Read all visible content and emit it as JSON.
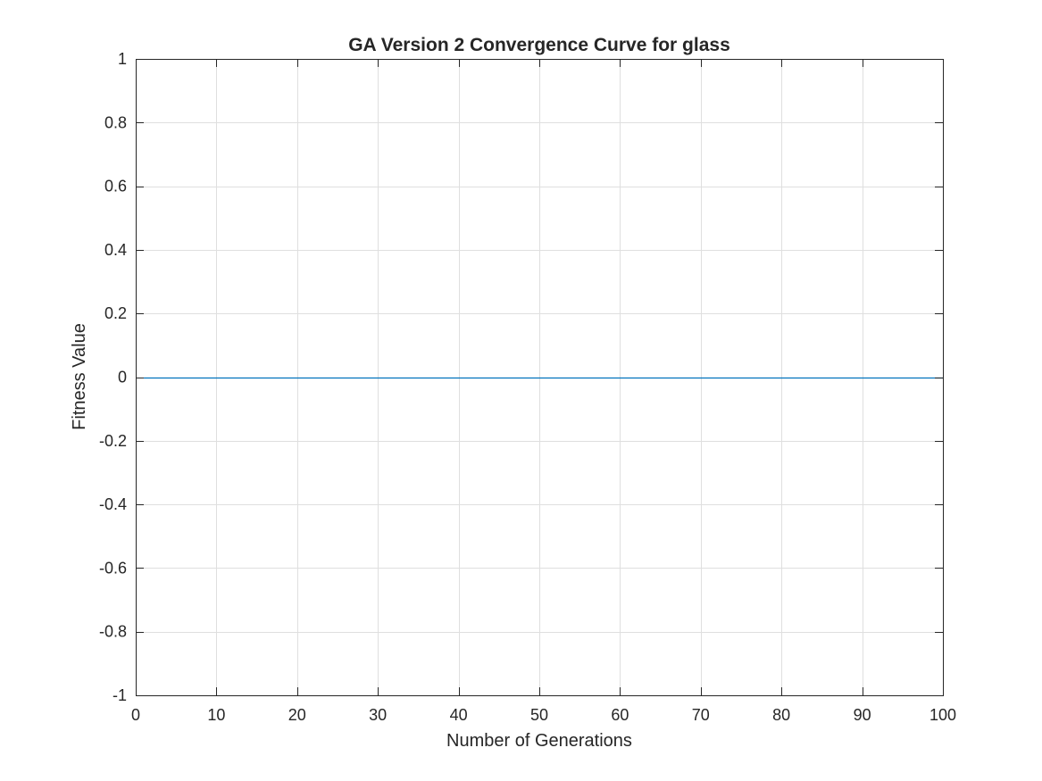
{
  "chart_data": {
    "type": "line",
    "title": "GA Version 2 Convergence Curve for glass",
    "xlabel": "Number of Generations",
    "ylabel": "Fitness Value",
    "xlim": [
      0,
      100
    ],
    "ylim": [
      -1,
      1
    ],
    "xticks": [
      0,
      10,
      20,
      30,
      40,
      50,
      60,
      70,
      80,
      90,
      100
    ],
    "xtick_labels": [
      "0",
      "10",
      "20",
      "30",
      "40",
      "50",
      "60",
      "70",
      "80",
      "90",
      "100"
    ],
    "yticks": [
      -1,
      -0.8,
      -0.6,
      -0.4,
      -0.2,
      0,
      0.2,
      0.4,
      0.6,
      0.8,
      1
    ],
    "ytick_labels": [
      "-1",
      "-0.8",
      "-0.6",
      "-0.4",
      "-0.2",
      "0",
      "0.2",
      "0.4",
      "0.6",
      "0.8",
      "1"
    ],
    "grid": true,
    "box": true,
    "series": [
      {
        "color": "#0072bd",
        "x": [
          1,
          100
        ],
        "y": [
          0,
          0
        ]
      }
    ]
  }
}
